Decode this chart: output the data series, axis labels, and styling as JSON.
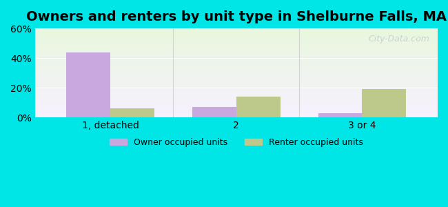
{
  "title": "Owners and renters by unit type in Shelburne Falls, MA",
  "categories": [
    "1, detached",
    "2",
    "3 or 4"
  ],
  "owner_values": [
    44,
    7,
    3
  ],
  "renter_values": [
    6,
    14,
    19
  ],
  "owner_color": "#c9a8e0",
  "renter_color": "#bcc98a",
  "background_color": "#00e5e5",
  "ylim": [
    0,
    60
  ],
  "yticks": [
    0,
    20,
    40,
    60
  ],
  "ytick_labels": [
    "0%",
    "20%",
    "40%",
    "60%"
  ],
  "bar_width": 0.35,
  "legend_owner": "Owner occupied units",
  "legend_renter": "Renter occupied units",
  "title_fontsize": 14,
  "watermark": "City-Data.com"
}
